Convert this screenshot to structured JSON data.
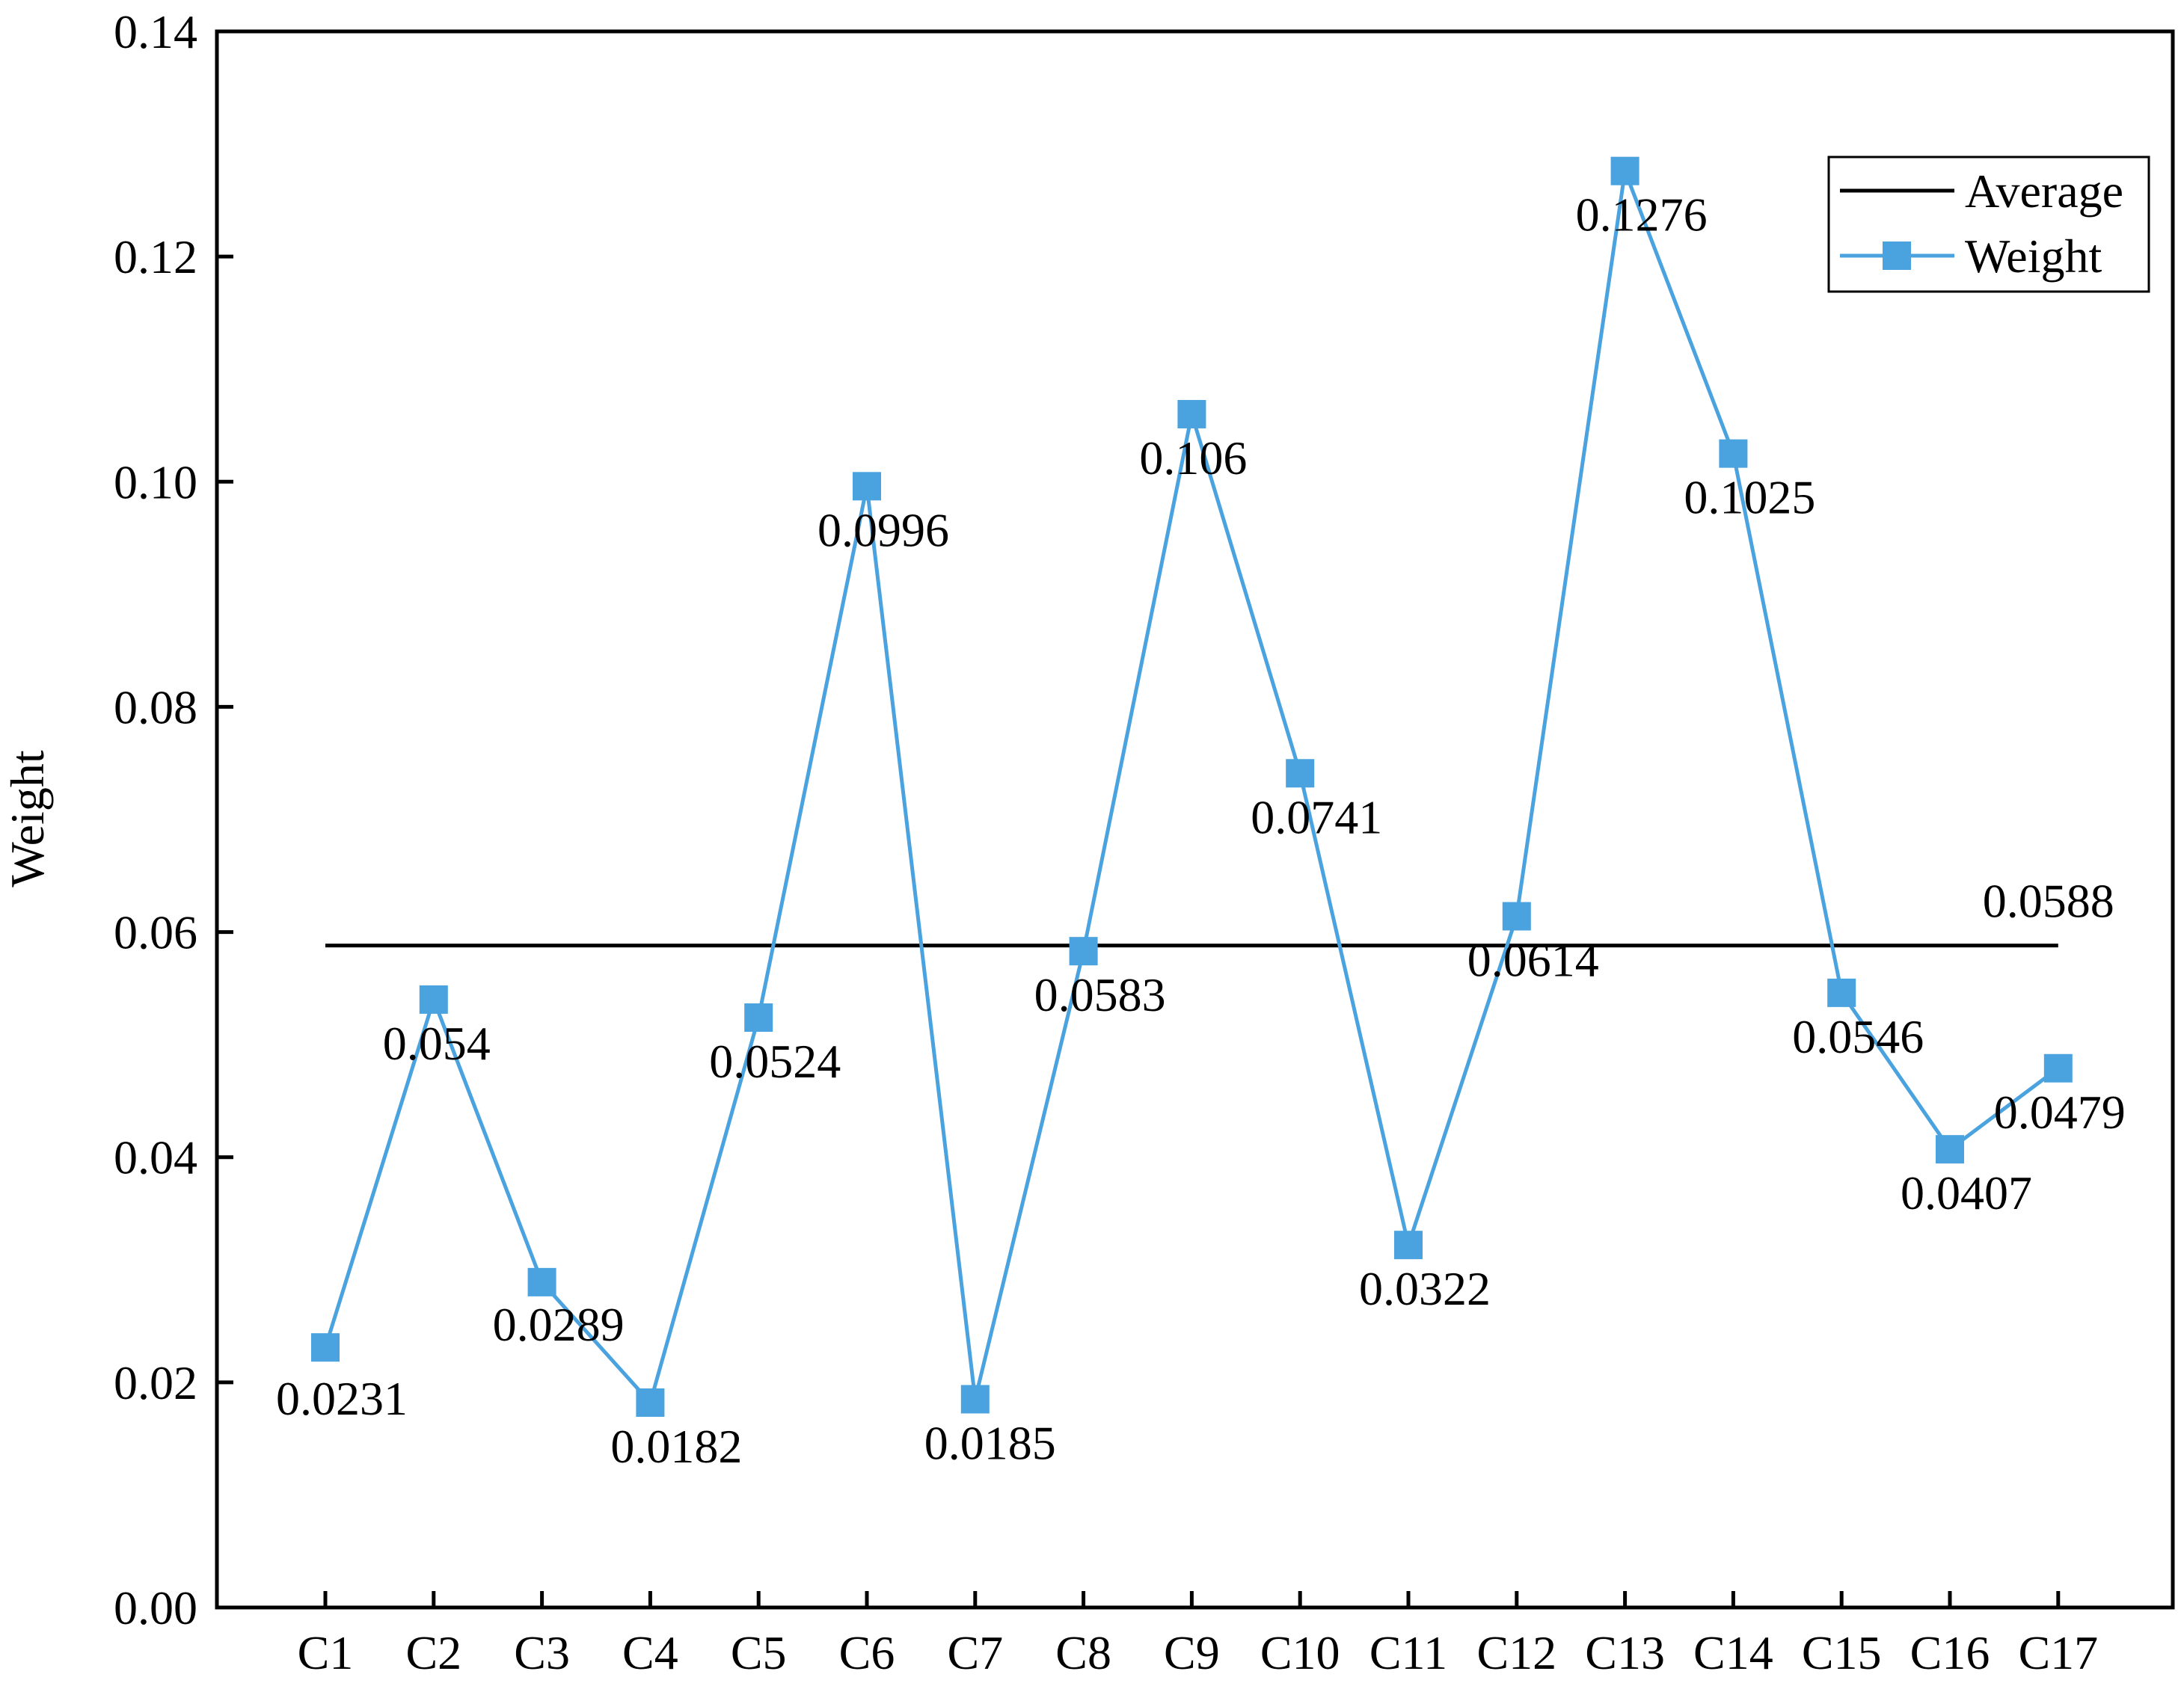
{
  "chart_data": {
    "type": "line",
    "ylabel": "Weight",
    "xlabel": "",
    "ylim": [
      0,
      0.14
    ],
    "yticks": [
      "0.00",
      "0.02",
      "0.04",
      "0.06",
      "0.08",
      "0.10",
      "0.12",
      "0.14"
    ],
    "categories": [
      "C1",
      "C2",
      "C3",
      "C4",
      "C5",
      "C6",
      "C7",
      "C8",
      "C9",
      "C10",
      "C11",
      "C12",
      "C13",
      "C14",
      "C15",
      "C16",
      "C17"
    ],
    "series": [
      {
        "name": "Weight",
        "color": "#4aa3df",
        "marker": "square",
        "values": [
          0.0231,
          0.054,
          0.0289,
          0.0182,
          0.0524,
          0.0996,
          0.0185,
          0.0583,
          0.106,
          0.0741,
          0.0322,
          0.0614,
          0.1276,
          0.1025,
          0.0546,
          0.0407,
          0.0479
        ],
        "labels": [
          "0.0231",
          "0.054",
          "0.0289",
          "0.0182",
          "0.0524",
          "0.0996",
          "0.0185",
          "0.0583",
          "0.106",
          "0.0741",
          "0.0322",
          "0.0614",
          "0.1276",
          "0.1025",
          "0.0546",
          "0.0407",
          "0.0479"
        ]
      }
    ],
    "average": {
      "name": "Average",
      "value": 0.0588,
      "label": "0.0588",
      "color": "#000000"
    },
    "legend": {
      "position": "top-right",
      "entries": [
        "Average",
        "Weight"
      ]
    },
    "grid": false
  }
}
